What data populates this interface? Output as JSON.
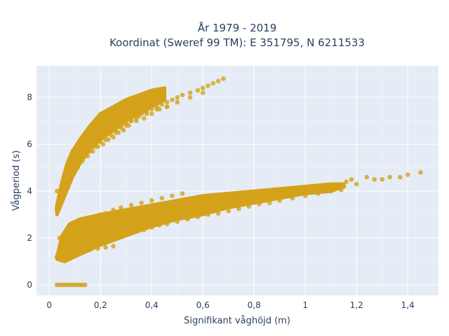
{
  "chart_data": {
    "type": "scatter",
    "title_lines": [
      "År 1979 - 2019",
      "Koordinat (Sweref 99 TM): E 351795, N 6211533"
    ],
    "xlabel": "Signifikant våghöjd (m)",
    "ylabel": "Vågperiod (s)",
    "xlim": [
      -0.05,
      1.52
    ],
    "ylim": [
      -0.45,
      9.35
    ],
    "x_ticks": [
      0,
      0.2,
      0.4,
      0.6,
      0.8,
      1,
      1.2,
      1.4
    ],
    "x_tick_labels": [
      "0",
      "0,2",
      "0,4",
      "0,6",
      "0,8",
      "1",
      "1,2",
      "1,4"
    ],
    "y_ticks": [
      0,
      2,
      4,
      6,
      8
    ],
    "y_tick_labels": [
      "0",
      "2",
      "4",
      "6",
      "8"
    ],
    "grid": true,
    "colors": {
      "marker": "#d4a21a",
      "plot_bg": "#e5ecf6",
      "grid": "#ffffff",
      "text": "#2a3f5f"
    },
    "series": [
      {
        "x": [
          0.03,
          0.04,
          0.05,
          0.06,
          0.07,
          0.08,
          0.09,
          0.1,
          0.11,
          0.12,
          0.13,
          0.14,
          0.03,
          0.04,
          0.05,
          0.06,
          0.07,
          0.08,
          0.09,
          0.1,
          0.12,
          0.14,
          0.16,
          0.18,
          0.2,
          0.22,
          0.25,
          0.28,
          0.3,
          0.33,
          0.36,
          0.4,
          0.44,
          0.48,
          0.52,
          0.56,
          0.6,
          0.64,
          0.68,
          0.72,
          0.76,
          0.8,
          0.84,
          0.88,
          0.92,
          0.96,
          1.0,
          1.05,
          1.1,
          1.15,
          0.05,
          0.07,
          0.09,
          0.11,
          0.13,
          0.15,
          0.17,
          0.19,
          0.21,
          0.23,
          0.25,
          0.27,
          0.29,
          0.31,
          0.34,
          0.37,
          0.4,
          0.43,
          0.46,
          0.5,
          0.54,
          0.58,
          0.62,
          0.66,
          0.7,
          0.74,
          0.78,
          0.82,
          0.86,
          0.9,
          0.95,
          1.0,
          1.05,
          1.1,
          1.14,
          0.04,
          0.06,
          0.08,
          0.1,
          0.12,
          0.14,
          0.16,
          0.18,
          0.2,
          0.22,
          0.25,
          0.28,
          0.32,
          0.36,
          0.4,
          0.44,
          0.48,
          0.52,
          0.05,
          0.07,
          0.09,
          0.11,
          0.13,
          0.16,
          0.19,
          0.22,
          0.25,
          0.03,
          0.04,
          0.05,
          0.06,
          0.07,
          0.08,
          0.09,
          0.1,
          0.11,
          0.12,
          0.14,
          0.16,
          0.18,
          0.2,
          0.22,
          0.24,
          0.26,
          0.28,
          0.3,
          0.32,
          0.34,
          0.36,
          0.38,
          0.4,
          0.42,
          0.44,
          0.46,
          0.48,
          0.5,
          0.52,
          0.55,
          0.58,
          0.6,
          0.62,
          0.64,
          0.66,
          0.68,
          0.03,
          0.04,
          0.05,
          0.06,
          0.07,
          0.08,
          0.09,
          0.1,
          0.11,
          0.12,
          0.13,
          0.14,
          0.16,
          0.18,
          0.2,
          0.22,
          0.24,
          0.26,
          0.28,
          0.3,
          0.32,
          0.35,
          0.38,
          0.42,
          0.46,
          0.5,
          0.55,
          0.6,
          0.03,
          0.05,
          0.07,
          0.09,
          0.11,
          0.13,
          0.15,
          0.17,
          0.19,
          0.21,
          0.23,
          0.25,
          0.27,
          0.29,
          0.31,
          0.34,
          0.37,
          0.4,
          0.43,
          0.46,
          1.16,
          1.18,
          1.2,
          1.24,
          1.27,
          1.3,
          1.33,
          1.37,
          1.4,
          1.45
        ],
        "y": [
          0,
          0,
          0,
          0,
          0,
          0,
          0,
          0,
          0,
          0,
          0,
          0,
          1.2,
          1.3,
          1.4,
          1.5,
          1.6,
          1.7,
          1.8,
          1.9,
          2.0,
          2.1,
          2.2,
          2.3,
          2.4,
          2.45,
          2.55,
          2.6,
          2.65,
          2.75,
          2.8,
          2.9,
          3.0,
          3.05,
          3.1,
          3.2,
          3.3,
          3.35,
          3.4,
          3.5,
          3.55,
          3.6,
          3.7,
          3.8,
          3.85,
          3.9,
          4.0,
          4.05,
          4.1,
          4.2,
          1.1,
          1.2,
          1.3,
          1.4,
          1.5,
          1.6,
          1.7,
          1.75,
          1.85,
          1.9,
          2.0,
          2.05,
          2.15,
          2.2,
          2.3,
          2.35,
          2.45,
          2.55,
          2.6,
          2.7,
          2.8,
          2.9,
          3.0,
          3.05,
          3.15,
          3.25,
          3.35,
          3.45,
          3.5,
          3.6,
          3.7,
          3.8,
          3.9,
          4.0,
          4.05,
          2.0,
          2.1,
          2.3,
          2.5,
          2.6,
          2.7,
          2.8,
          2.9,
          3.0,
          3.05,
          3.2,
          3.3,
          3.4,
          3.5,
          3.6,
          3.7,
          3.8,
          3.9,
          1.1,
          1.2,
          1.3,
          1.35,
          1.4,
          1.5,
          1.55,
          1.6,
          1.65,
          3.3,
          3.6,
          3.9,
          4.2,
          4.5,
          4.8,
          5.0,
          5.2,
          5.3,
          5.5,
          5.6,
          5.8,
          6.0,
          6.2,
          6.4,
          6.5,
          6.6,
          6.8,
          6.9,
          7.0,
          7.1,
          7.3,
          7.4,
          7.5,
          7.6,
          7.7,
          7.8,
          7.9,
          8.0,
          8.1,
          8.2,
          8.3,
          8.4,
          8.5,
          8.6,
          8.7,
          8.8,
          3.2,
          3.4,
          3.7,
          4.0,
          4.3,
          4.5,
          4.7,
          4.9,
          5.1,
          5.2,
          5.4,
          5.5,
          5.7,
          5.9,
          6.1,
          6.2,
          6.4,
          6.5,
          6.7,
          6.8,
          7.0,
          7.2,
          7.3,
          7.5,
          7.6,
          7.8,
          8.0,
          8.2,
          4.0,
          4.2,
          4.5,
          4.8,
          5.0,
          5.3,
          5.5,
          5.7,
          5.9,
          6.0,
          6.2,
          6.3,
          6.5,
          6.6,
          6.8,
          7.0,
          7.1,
          7.3,
          7.5,
          7.6,
          4.4,
          4.5,
          4.3,
          4.6,
          4.5,
          4.5,
          4.6,
          4.6,
          4.7,
          4.8
        ]
      }
    ]
  }
}
